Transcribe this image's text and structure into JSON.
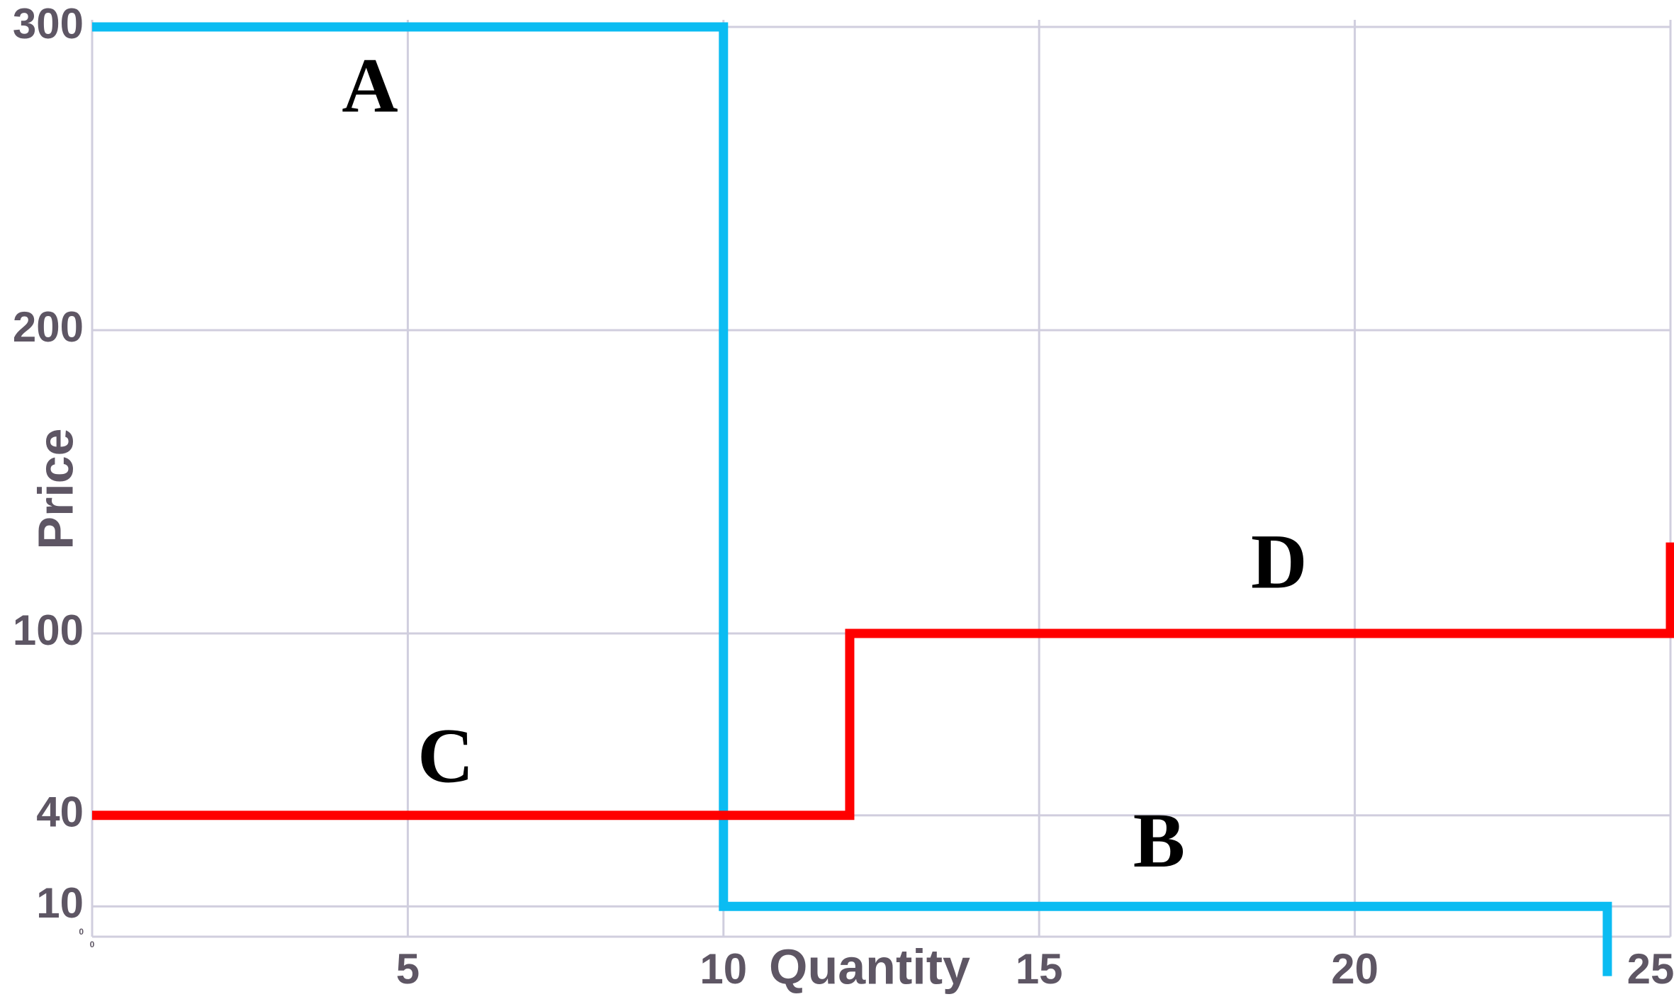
{
  "chart_data": {
    "type": "line",
    "step": true,
    "x_label": "Quantity",
    "y_label": "Price",
    "series": [
      {
        "color": "#0bbcf2",
        "x": [
          0,
          10,
          10,
          24,
          24
        ],
        "values": [
          300,
          300,
          10,
          10,
          -13
        ]
      },
      {
        "color": "#ff0000",
        "x": [
          0,
          12,
          12,
          25,
          25
        ],
        "values": [
          40,
          40,
          100,
          100,
          130
        ]
      }
    ],
    "annotations": [
      {
        "text": "A",
        "x": 4.4,
        "y": 278
      },
      {
        "text": "B",
        "x": 16.9,
        "y": 29
      },
      {
        "text": "C",
        "x": 5.6,
        "y": 57
      },
      {
        "text": "D",
        "x": 18.8,
        "y": 121
      }
    ],
    "xlim": [
      0,
      25
    ],
    "ylim": [
      0,
      300
    ],
    "xticks": [
      0,
      5,
      10,
      15,
      20,
      25
    ],
    "yticks": [
      0,
      10,
      40,
      100,
      200,
      300
    ],
    "grid": true
  }
}
